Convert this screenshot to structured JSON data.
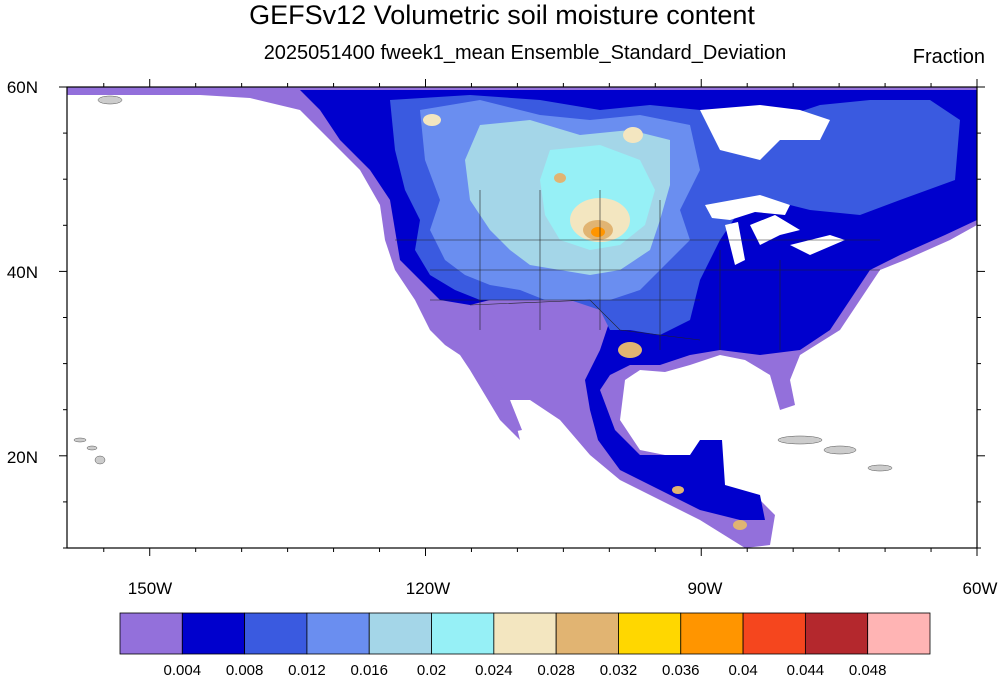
{
  "title": "GEFSv12 Volumetric soil moisture content",
  "subtitle": "2025051400 fweek1_mean Ensemble_Standard_Deviation",
  "units": "Fraction",
  "lat_labels": [
    "60N",
    "40N",
    "20N"
  ],
  "lon_labels": [
    "150W",
    "120W",
    "90W",
    "60W"
  ],
  "map_extent": {
    "lon_min": -159,
    "lon_max": -60,
    "lat_min": 10,
    "lat_max": 60
  },
  "colorbar": {
    "colors": [
      "#9370db",
      "#0000cd",
      "#3a5ae0",
      "#6a8ef0",
      "#a4d6e8",
      "#96f0f6",
      "#f3e6c0",
      "#e1b472",
      "#ffd700",
      "#ff9500",
      "#f5461e",
      "#b4282d",
      "#ffb4b4"
    ],
    "labels": [
      "0.004",
      "0.008",
      "0.012",
      "0.016",
      "0.02",
      "0.024",
      "0.028",
      "0.032",
      "0.036",
      "0.04",
      "0.044",
      "0.048"
    ]
  }
}
